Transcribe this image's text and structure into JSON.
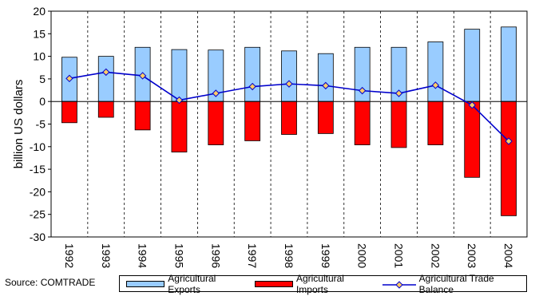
{
  "chart_data": {
    "type": "bar",
    "title": "",
    "xlabel": "",
    "ylabel": "billion US dollars",
    "ylim": [
      -30,
      20
    ],
    "yticks": [
      20,
      15,
      10,
      5,
      0,
      -5,
      -10,
      -15,
      -20,
      -25,
      -30
    ],
    "grid": "vertical dashed",
    "categories": [
      "1992",
      "1993",
      "1994",
      "1995",
      "1996",
      "1997",
      "1998",
      "1999",
      "2000",
      "2001",
      "2002",
      "2003",
      "2004"
    ],
    "series": [
      {
        "name": "Agricultural Exports",
        "kind": "bar",
        "color": "#99ccff",
        "values": [
          9.8,
          10.0,
          12.0,
          11.5,
          11.4,
          12.0,
          11.2,
          10.6,
          12.0,
          12.0,
          13.2,
          16.0,
          16.5
        ]
      },
      {
        "name": "Agricultural Imports",
        "kind": "bar",
        "color": "#ff0000",
        "values": [
          -4.7,
          -3.5,
          -6.3,
          -11.2,
          -9.6,
          -8.7,
          -7.3,
          -7.1,
          -9.6,
          -10.2,
          -9.6,
          -16.8,
          -25.3
        ]
      },
      {
        "name": "Agricultural Trade Balance",
        "kind": "line",
        "color": "#0000cc",
        "marker_color": "#ffcc66",
        "values": [
          5.1,
          6.5,
          5.7,
          0.3,
          1.8,
          3.3,
          3.9,
          3.5,
          2.4,
          1.8,
          3.6,
          -0.8,
          -8.8
        ]
      }
    ]
  },
  "source": "Source: COMTRADE"
}
